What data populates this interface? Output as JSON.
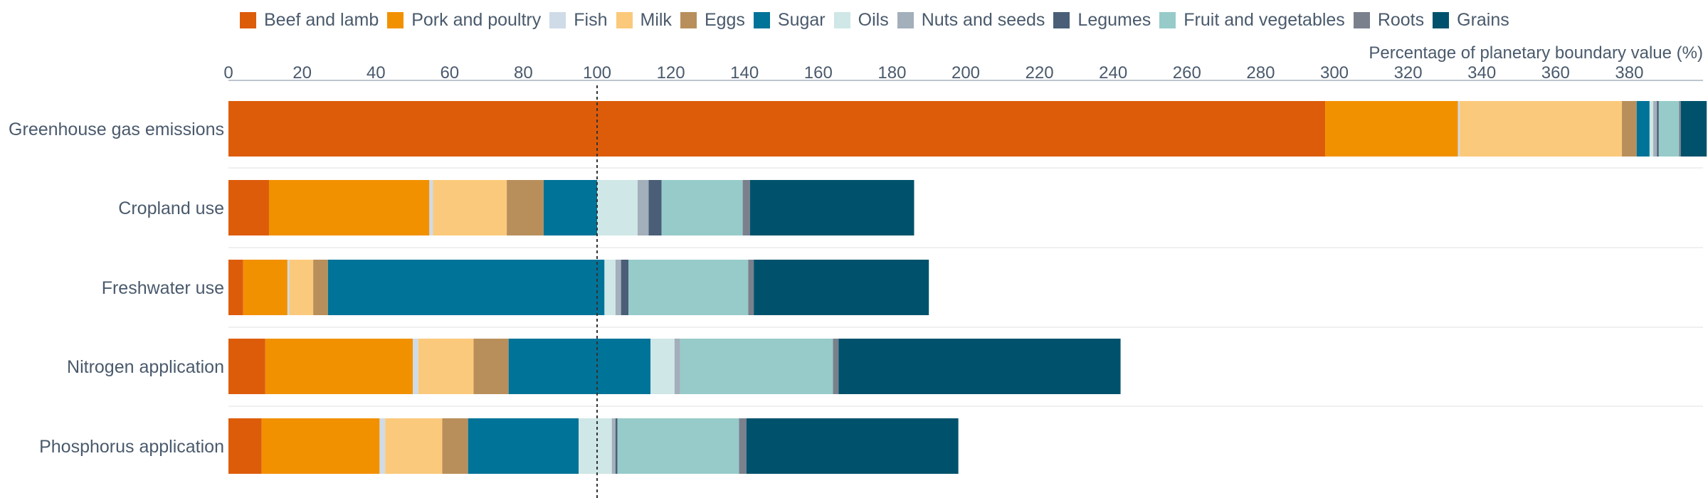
{
  "chart_data": {
    "type": "bar",
    "orientation": "horizontal",
    "stacked": true,
    "title": "",
    "xlabel": "Percentage of planetary boundary value (%)",
    "ylabel": "",
    "xlim": [
      0,
      400
    ],
    "x_ticks": [
      0,
      20,
      40,
      60,
      80,
      100,
      120,
      140,
      160,
      180,
      200,
      220,
      240,
      260,
      280,
      300,
      320,
      340,
      360,
      380
    ],
    "reference_line": 100,
    "legend_position": "top",
    "grid": "horizontal",
    "categories": [
      "Greenhouse gas emissions",
      "Cropland use",
      "Freshwater use",
      "Nitrogen application",
      "Phosphorus application"
    ],
    "series": [
      {
        "name": "Beef and lamb",
        "color": "#dd5c0a",
        "values": [
          297.5,
          11,
          4,
          10,
          9
        ]
      },
      {
        "name": "Pork and poultry",
        "color": "#f29100",
        "values": [
          36,
          43.5,
          12,
          40,
          32
        ]
      },
      {
        "name": "Fish",
        "color": "#cfdbe7",
        "values": [
          0.5,
          1,
          0.5,
          1.5,
          1.5
        ]
      },
      {
        "name": "Milk",
        "color": "#fbc97b",
        "values": [
          44,
          20,
          6.5,
          15,
          15.5
        ]
      },
      {
        "name": "Eggs",
        "color": "#b88f5b",
        "values": [
          4,
          10,
          4,
          9.5,
          7
        ]
      },
      {
        "name": "Sugar",
        "color": "#007398",
        "values": [
          3.5,
          14.5,
          75,
          38.5,
          30
        ]
      },
      {
        "name": "Oils",
        "color": "#cfe7e6",
        "values": [
          1,
          11,
          3,
          6.5,
          9
        ]
      },
      {
        "name": "Nuts and seeds",
        "color": "#a3afba",
        "values": [
          1,
          3,
          1.5,
          1.5,
          1
        ]
      },
      {
        "name": "Legumes",
        "color": "#4a5e77",
        "values": [
          0.5,
          3.5,
          2,
          0,
          0.5
        ]
      },
      {
        "name": "Fruit and vegetables",
        "color": "#96cbc9",
        "values": [
          5.5,
          22,
          32.5,
          41.5,
          33
        ]
      },
      {
        "name": "Roots",
        "color": "#7a808c",
        "values": [
          0.5,
          2,
          1.5,
          1.5,
          2
        ]
      },
      {
        "name": "Grains",
        "color": "#00526c",
        "values": [
          7,
          44.5,
          47.5,
          76.5,
          57.5
        ]
      }
    ]
  }
}
